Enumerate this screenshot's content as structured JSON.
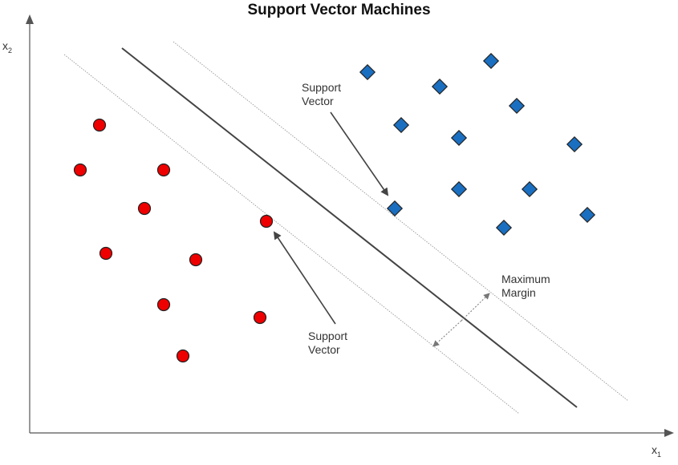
{
  "title": "Support Vector Machines",
  "axes": {
    "x_label": "x",
    "x_sub": "1",
    "y_label": "x",
    "y_sub": "2"
  },
  "annotations": {
    "support_vector_top": [
      "Support",
      "Vector"
    ],
    "support_vector_bottom": [
      "Support",
      "Vector"
    ],
    "maximum_margin": [
      "Maximum",
      "Margin"
    ]
  },
  "colors": {
    "class_a_fill": "#ee0000",
    "class_b_fill": "#1a6fc0",
    "hyperplane": "#444444",
    "margin_line": "#999999",
    "axis": "#555555"
  },
  "shapes": {
    "class_a": "circle",
    "class_b": "diamond"
  }
}
